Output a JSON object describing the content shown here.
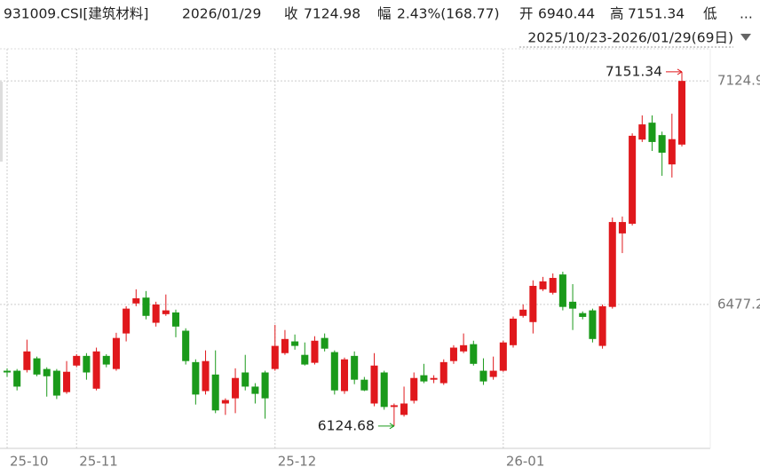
{
  "chart_data": {
    "type": "candlestick",
    "title": "931009.CSI[建筑材料]",
    "date": "2026/01/29",
    "quote": [
      {
        "label": "收",
        "value": 7124.98,
        "color": "#e0181c"
      },
      {
        "label": "幅",
        "value": "2.43%(168.77)",
        "color": "#e0181c"
      },
      {
        "label": "开",
        "value": 6940.44,
        "color": "#1a9a1a"
      },
      {
        "label": "高",
        "value": 7151.34,
        "color": "#e0181c"
      },
      {
        "label": "低",
        "value": "...",
        "color": "#e0181c"
      }
    ],
    "range": "2025/10/23-2026/01/29(69日)",
    "categories": [
      "25-10",
      null,
      null,
      null,
      null,
      null,
      null,
      "25-11",
      null,
      null,
      null,
      null,
      null,
      null,
      null,
      null,
      null,
      null,
      null,
      null,
      null,
      null,
      null,
      null,
      null,
      null,
      null,
      "25-12",
      null,
      null,
      null,
      null,
      null,
      null,
      null,
      null,
      null,
      null,
      null,
      null,
      null,
      null,
      null,
      null,
      null,
      null,
      null,
      null,
      null,
      null,
      "26-01",
      null,
      null,
      null,
      null,
      null,
      null,
      null,
      null,
      null,
      null,
      null,
      null,
      null,
      null,
      null,
      null,
      null,
      null
    ],
    "open": [
      6285,
      6285,
      6287,
      6321,
      6290,
      6285,
      6223,
      6300,
      6328,
      6233,
      6328,
      6290,
      6393,
      6480,
      6497,
      6424,
      6449,
      6454,
      6401,
      6310,
      6226,
      6274,
      6190,
      6205,
      6280,
      6239,
      6280,
      6290,
      6336,
      6370,
      6331,
      6308,
      6380,
      6339,
      6226,
      6328,
      6259,
      6190,
      6280,
      6180,
      6157,
      6198,
      6272,
      6259,
      6249,
      6313,
      6341,
      6362,
      6285,
      6267,
      6285,
      6359,
      6444,
      6426,
      6521,
      6511,
      6564,
      6485,
      6452,
      6460,
      6357,
      6470,
      6683,
      6711,
      6955,
      7004,
      6968,
      6883,
      6940.44
    ],
    "high": [
      6292,
      6290,
      6375,
      6326,
      6295,
      6290,
      6313,
      6333,
      6336,
      6352,
      6333,
      6395,
      6472,
      6521,
      6516,
      6485,
      6506,
      6462,
      6408,
      6318,
      6344,
      6344,
      6205,
      6292,
      6331,
      6249,
      6285,
      6418,
      6403,
      6390,
      6367,
      6385,
      6393,
      6344,
      6323,
      6341,
      6267,
      6336,
      6285,
      6190,
      6239,
      6280,
      6305,
      6272,
      6318,
      6359,
      6393,
      6372,
      6321,
      6326,
      6372,
      6442,
      6477,
      6547,
      6557,
      6567,
      6572,
      6536,
      6457,
      6465,
      6477,
      6729,
      6732,
      6973,
      7025,
      7025,
      6978,
      7030,
      7151.34
    ],
    "low": [
      6267,
      6228,
      6280,
      6269,
      6210,
      6203,
      6218,
      6295,
      6259,
      6228,
      6295,
      6285,
      6370,
      6472,
      6434,
      6413,
      6444,
      6382,
      6303,
      6187,
      6216,
      6162,
      6157,
      6162,
      6228,
      6190,
      6146,
      6285,
      6331,
      6346,
      6300,
      6303,
      6341,
      6216,
      6218,
      6246,
      6226,
      6182,
      6172,
      6124.68,
      6152,
      6190,
      6249,
      6249,
      6244,
      6305,
      6336,
      6300,
      6244,
      6259,
      6282,
      6352,
      6439,
      6393,
      6516,
      6506,
      6460,
      6403,
      6434,
      6367,
      6349,
      6465,
      6626,
      6706,
      6948,
      6922,
      6850,
      6845,
      6935
    ],
    "close": [
      6280,
      6239,
      6341,
      6274,
      6269,
      6213,
      6282,
      6328,
      6280,
      6341,
      6303,
      6380,
      6465,
      6495,
      6444,
      6477,
      6460,
      6413,
      6313,
      6216,
      6313,
      6170,
      6200,
      6264,
      6239,
      6218,
      6205,
      6357,
      6377,
      6357,
      6303,
      6372,
      6349,
      6228,
      6318,
      6259,
      6228,
      6300,
      6180,
      6185,
      6190,
      6264,
      6254,
      6264,
      6310,
      6352,
      6359,
      6305,
      6254,
      6285,
      6367,
      6436,
      6462,
      6531,
      6544,
      6554,
      6470,
      6465,
      6441,
      6377,
      6472,
      6716,
      6716,
      6966,
      6999,
      6948,
      6917,
      6956.21,
      7124.98
    ],
    "up_color": "#e0181c",
    "down_color": "#1a9a1a",
    "ylim": [
      6060,
      7218
    ],
    "yticks": [
      6477.2,
      7124.9
    ],
    "grid": true,
    "annotations": [
      7151.34,
      6124.68
    ]
  }
}
